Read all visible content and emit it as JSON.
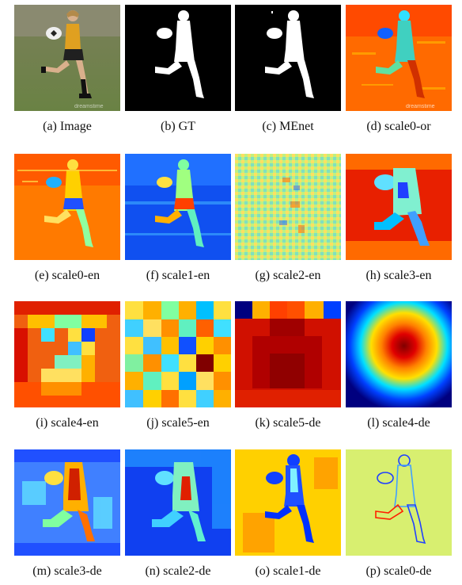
{
  "figure": {
    "panels": [
      {
        "label": "(a)",
        "name": "Image"
      },
      {
        "label": "(b)",
        "name": "GT"
      },
      {
        "label": "(c)",
        "name": "MEnet"
      },
      {
        "label": "(d)",
        "name": "scale0-or"
      },
      {
        "label": "(e)",
        "name": "scale0-en"
      },
      {
        "label": "(f)",
        "name": "scale1-en"
      },
      {
        "label": "(g)",
        "name": "scale2-en"
      },
      {
        "label": "(h)",
        "name": "scale3-en"
      },
      {
        "label": "(i)",
        "name": "scale4-en"
      },
      {
        "label": "(j)",
        "name": "scale5-en"
      },
      {
        "label": "(k)",
        "name": "scale5-de"
      },
      {
        "label": "(l)",
        "name": "scale4-de"
      },
      {
        "label": "(m)",
        "name": "scale3-de"
      },
      {
        "label": "(n)",
        "name": "scale2-de"
      },
      {
        "label": "(o)",
        "name": "scale1-de"
      },
      {
        "label": "(p)",
        "name": "scale0-de"
      }
    ],
    "watermark": "dreamstime",
    "colors": {
      "jet_dark_blue": "#00007f",
      "jet_blue": "#0040ff",
      "jet_cyan": "#00e0ff",
      "jet_yellow": "#ffe000",
      "jet_orange": "#ff7000",
      "jet_red": "#e00000",
      "jet_dark_red": "#800000"
    }
  }
}
